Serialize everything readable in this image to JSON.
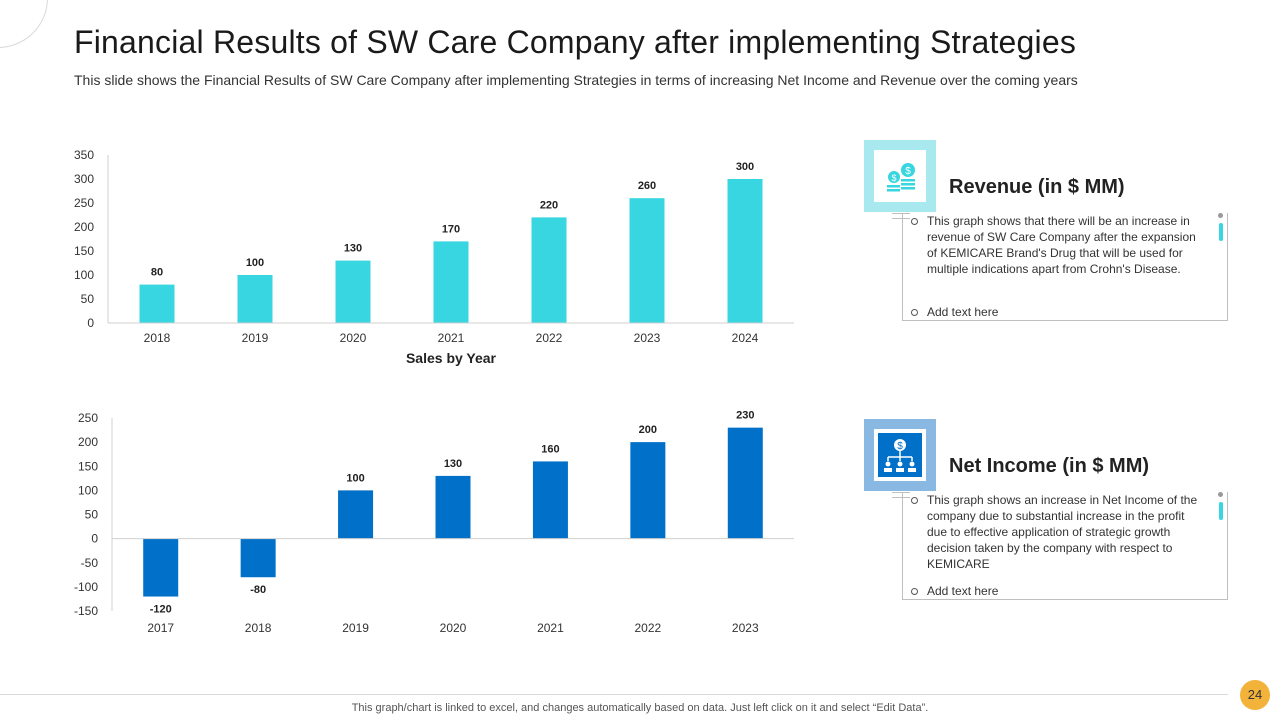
{
  "header": {
    "title": "Financial Results of SW Care Company after implementing Strategies",
    "subtitle": "This slide shows the Financial Results of SW Care Company after implementing Strategies in terms of increasing Net Income and Revenue over the coming years"
  },
  "colors": {
    "revenue": "#37d6e0",
    "net_income": "#0070c8",
    "accent": "#f3b23a"
  },
  "chart_data": [
    {
      "type": "bar",
      "title": "",
      "xlabel": "Sales by Year",
      "ylabel": "",
      "categories": [
        "2018",
        "2019",
        "2020",
        "2021",
        "2022",
        "2023",
        "2024"
      ],
      "values": [
        80,
        100,
        130,
        170,
        220,
        260,
        300
      ],
      "ylim": [
        0,
        350
      ],
      "yticks": [
        0,
        50,
        100,
        150,
        200,
        250,
        300,
        350
      ],
      "grid": false,
      "series_name": "Revenue (in $ MM)"
    },
    {
      "type": "bar",
      "title": "",
      "xlabel": "",
      "ylabel": "",
      "categories": [
        "2017",
        "2018",
        "2019",
        "2020",
        "2021",
        "2022",
        "2023"
      ],
      "values": [
        -120,
        -80,
        100,
        130,
        160,
        200,
        230
      ],
      "ylim": [
        -150,
        250
      ],
      "yticks": [
        -150,
        -100,
        -50,
        0,
        50,
        100,
        150,
        200,
        250
      ],
      "grid": false,
      "series_name": "Net Income (in $ MM)"
    }
  ],
  "cards": {
    "revenue": {
      "icon": "money-coins-icon",
      "title": "Revenue (in $ MM)",
      "text": "This graph shows that there will be an increase in revenue of SW Care Company after the expansion of KEMICARE Brand's Drug that will be used for multiple indications apart from Crohn's Disease.",
      "add": "Add text here"
    },
    "net_income": {
      "icon": "dollar-hierarchy-icon",
      "title": "Net Income (in $ MM)",
      "text": "This graph shows an increase in Net Income of the company due to substantial increase in the profit due to effective application of strategic growth decision taken by the company with respect to KEMICARE",
      "add": "Add text here"
    }
  },
  "footer": {
    "note": "This graph/chart is linked to excel, and changes automatically based on data. Just left click on it and select “Edit Data”.",
    "page": "24"
  }
}
